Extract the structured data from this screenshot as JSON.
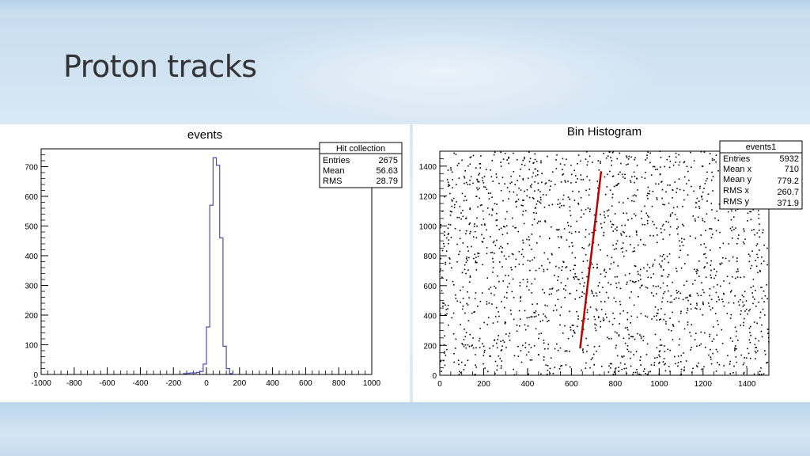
{
  "slide": {
    "title": "Proton tracks"
  },
  "chart_data": [
    {
      "type": "bar",
      "title": "events",
      "xlim": [
        -1000,
        1000
      ],
      "ylim": [
        0,
        760
      ],
      "xticks": [
        -1000,
        -800,
        -600,
        -400,
        -200,
        0,
        200,
        400,
        600,
        800,
        1000
      ],
      "yticks": [
        0,
        100,
        200,
        300,
        400,
        500,
        600,
        700
      ],
      "bin_width": 20,
      "bins": [
        {
          "x": -140,
          "y": 3
        },
        {
          "x": -120,
          "y": 4
        },
        {
          "x": -100,
          "y": 5
        },
        {
          "x": -80,
          "y": 5
        },
        {
          "x": -60,
          "y": 7
        },
        {
          "x": -40,
          "y": 10
        },
        {
          "x": -20,
          "y": 35
        },
        {
          "x": 0,
          "y": 160
        },
        {
          "x": 20,
          "y": 570
        },
        {
          "x": 40,
          "y": 730
        },
        {
          "x": 60,
          "y": 705
        },
        {
          "x": 80,
          "y": 460
        },
        {
          "x": 100,
          "y": 95
        },
        {
          "x": 120,
          "y": 20
        },
        {
          "x": 140,
          "y": 3
        }
      ],
      "stats": {
        "title": "Hit collection",
        "rows": [
          {
            "label": "Entries",
            "value": "2675"
          },
          {
            "label": "Mean",
            "value": "56.63"
          },
          {
            "label": "RMS",
            "value": "28.79"
          }
        ]
      },
      "line_color": "#4d4dbb"
    },
    {
      "type": "scatter",
      "title": "Bin Histogram",
      "xlim": [
        0,
        1500
      ],
      "ylim": [
        0,
        1500
      ],
      "xticks": [
        0,
        200,
        400,
        600,
        800,
        1000,
        1200,
        1400
      ],
      "yticks": [
        0,
        200,
        400,
        600,
        800,
        1000,
        1200,
        1400
      ],
      "background_points": 1900,
      "track": {
        "x1": 640,
        "y1": 185,
        "x2": 735,
        "y2": 1360,
        "color": "#c00000"
      },
      "stats": {
        "title": "events1",
        "rows": [
          {
            "label": "Entries",
            "value": "5932"
          },
          {
            "label": "Mean x",
            "value": "710"
          },
          {
            "label": "Mean y",
            "value": "779.2"
          },
          {
            "label": "RMS x",
            "value": "260.7"
          },
          {
            "label": "RMS y",
            "value": "371.9"
          }
        ]
      }
    }
  ]
}
